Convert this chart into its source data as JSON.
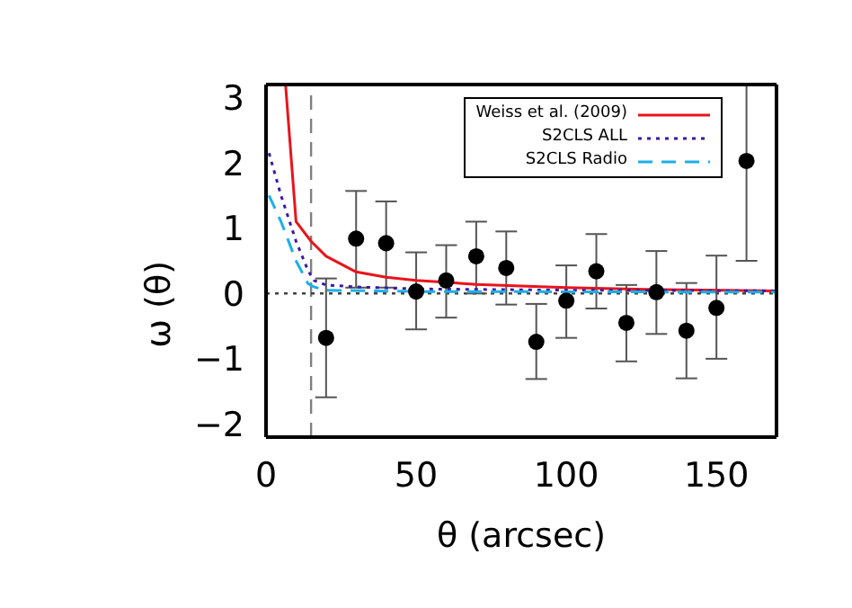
{
  "chart_data": {
    "type": "scatter",
    "xlabel": "θ (arcsec)",
    "ylabel": "ω (θ)",
    "xlim": [
      0,
      170
    ],
    "xticks": [
      0,
      50,
      100,
      150
    ],
    "ylim": [
      -2.2,
      3.2
    ],
    "yticks": [
      -2,
      -1,
      0,
      1,
      2,
      3
    ],
    "grid": false,
    "legend": "top right",
    "series": [
      {
        "color": "#000000",
        "marker": "circle",
        "x": [
          20,
          30,
          40,
          50,
          60,
          70,
          80,
          90,
          100,
          110,
          120,
          130,
          140,
          150,
          160
        ],
        "values": [
          -0.68,
          0.84,
          0.77,
          0.03,
          0.2,
          0.57,
          0.39,
          -0.74,
          -0.11,
          0.34,
          -0.45,
          0.02,
          -0.57,
          -0.22,
          2.03
        ],
        "errors": [
          [
            -1.59,
            0.23
          ],
          [
            0.09,
            1.57
          ],
          [
            0.09,
            1.41
          ],
          [
            -0.55,
            0.63
          ],
          [
            -0.37,
            0.74
          ],
          [
            0.0,
            1.1
          ],
          [
            -0.17,
            0.95
          ],
          [
            -1.31,
            -0.16
          ],
          [
            -0.68,
            0.43
          ],
          [
            -0.23,
            0.91
          ],
          [
            -1.04,
            0.13
          ],
          [
            -0.62,
            0.65
          ],
          [
            -1.3,
            0.16
          ],
          [
            -1.0,
            0.58
          ],
          [
            0.5,
            3.2
          ]
        ]
      },
      {
        "type": "line",
        "name": "Weiss et al. (2009)",
        "color": "#e8141c",
        "line_style": "solid",
        "marker": "none",
        "x": [
          6.5,
          10,
          15,
          20,
          30,
          40,
          50,
          70,
          100,
          130,
          170
        ],
        "values": [
          3.2,
          1.1,
          0.8,
          0.57,
          0.33,
          0.25,
          0.2,
          0.14,
          0.09,
          0.06,
          0.04
        ]
      },
      {
        "type": "line",
        "name": "S2CLS ALL",
        "color": "#3a1aa8",
        "line_style": "dotted",
        "marker": "none",
        "x": [
          1,
          5,
          10,
          14,
          16,
          20,
          30,
          50,
          100,
          170
        ],
        "values": [
          2.15,
          1.5,
          0.8,
          0.35,
          0.2,
          0.13,
          0.1,
          0.07,
          0.05,
          0.04
        ]
      },
      {
        "type": "line",
        "name": "S2CLS Radio",
        "color": "#1ab0e8",
        "line_style": "dashed",
        "marker": "none",
        "x": [
          1,
          5,
          10,
          14,
          16,
          20,
          50,
          170
        ],
        "values": [
          1.5,
          1.1,
          0.5,
          0.15,
          0.1,
          0.05,
          0.03,
          0.02
        ]
      }
    ],
    "ref_lines": [
      {
        "axis": "x",
        "value": 15,
        "color": "#808080",
        "line_style": "dashed"
      },
      {
        "axis": "y",
        "value": 0,
        "color": "#404040",
        "line_style": "dotted"
      }
    ]
  }
}
